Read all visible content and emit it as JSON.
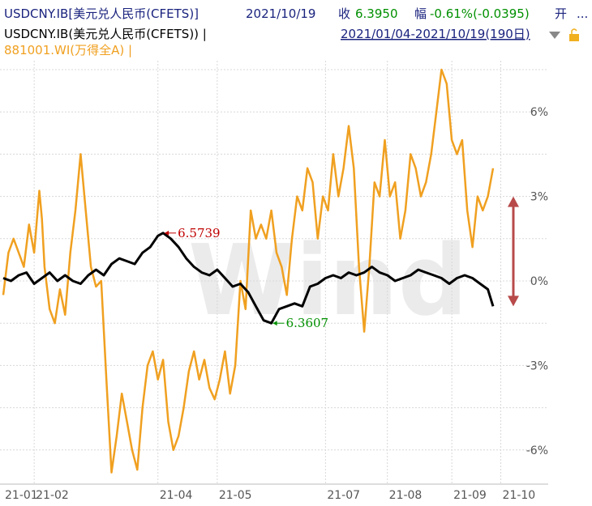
{
  "header": {
    "line1": {
      "security": "USDCNY.IB[美元兑人民币(CFETS)]",
      "date": "2021/10/19",
      "close_label": "收",
      "close_value": "6.3950",
      "change_label": "幅",
      "change_value": "-0.61%(-0.0395)",
      "open_label": "开",
      "more": "..."
    },
    "line2": {
      "series1_legend": "USDCNY.IB(美元兑人民币(CFETS)) |",
      "range": "2021/01/04-2021/10/19(190日)"
    },
    "line3": {
      "series2_legend": "881001.WI(万得全A) |"
    }
  },
  "watermark": "Wind",
  "colors": {
    "usdcny": "#000000",
    "wind_a": "#F0A020",
    "up": "#C00000",
    "down": "#009000",
    "link": "#1A237E",
    "arrow": "#B84A4A",
    "grid": "#D8D8D8"
  },
  "chart_data": {
    "type": "line",
    "x_tick_labels": [
      "21-01",
      "21-02",
      "21-04",
      "21-05",
      "21-07",
      "21-08",
      "21-09",
      "21-10"
    ],
    "y_tick_labels": [
      "6%",
      "3%",
      "0%",
      "-3%",
      "-6%"
    ],
    "ylim": [
      -7.5,
      7.5
    ],
    "y_unit": "%",
    "x_index_range": [
      0,
      190
    ],
    "series": [
      {
        "name": "USDCNY.IB(美元兑人民币(CFETS))",
        "values": [
          [
            0,
            0.1
          ],
          [
            3,
            0.0
          ],
          [
            6,
            0.2
          ],
          [
            9,
            0.3
          ],
          [
            12,
            -0.1
          ],
          [
            15,
            0.1
          ],
          [
            18,
            0.3
          ],
          [
            21,
            0.0
          ],
          [
            24,
            0.2
          ],
          [
            27,
            0.0
          ],
          [
            30,
            -0.1
          ],
          [
            33,
            0.2
          ],
          [
            36,
            0.4
          ],
          [
            39,
            0.2
          ],
          [
            42,
            0.6
          ],
          [
            45,
            0.8
          ],
          [
            48,
            0.7
          ],
          [
            51,
            0.6
          ],
          [
            54,
            1.0
          ],
          [
            57,
            1.2
          ],
          [
            60,
            1.6
          ],
          [
            62,
            1.7
          ],
          [
            65,
            1.5
          ],
          [
            68,
            1.2
          ],
          [
            71,
            0.8
          ],
          [
            74,
            0.5
          ],
          [
            77,
            0.3
          ],
          [
            80,
            0.2
          ],
          [
            83,
            0.4
          ],
          [
            86,
            0.1
          ],
          [
            89,
            -0.2
          ],
          [
            92,
            -0.1
          ],
          [
            95,
            -0.4
          ],
          [
            98,
            -0.9
          ],
          [
            101,
            -1.4
          ],
          [
            104,
            -1.5
          ],
          [
            107,
            -1.0
          ],
          [
            110,
            -0.9
          ],
          [
            113,
            -0.8
          ],
          [
            116,
            -0.9
          ],
          [
            119,
            -0.2
          ],
          [
            122,
            -0.1
          ],
          [
            125,
            0.1
          ],
          [
            128,
            0.2
          ],
          [
            131,
            0.1
          ],
          [
            134,
            0.3
          ],
          [
            137,
            0.2
          ],
          [
            140,
            0.3
          ],
          [
            143,
            0.5
          ],
          [
            146,
            0.3
          ],
          [
            149,
            0.2
          ],
          [
            152,
            0.0
          ],
          [
            155,
            0.1
          ],
          [
            158,
            0.2
          ],
          [
            161,
            0.4
          ],
          [
            164,
            0.3
          ],
          [
            167,
            0.2
          ],
          [
            170,
            0.1
          ],
          [
            173,
            -0.1
          ],
          [
            176,
            0.1
          ],
          [
            179,
            0.2
          ],
          [
            182,
            0.1
          ],
          [
            185,
            -0.1
          ],
          [
            188,
            -0.3
          ],
          [
            190,
            -0.9
          ]
        ]
      },
      {
        "name": "881001.WI(万得全A)",
        "values": [
          [
            0,
            -0.5
          ],
          [
            2,
            1.0
          ],
          [
            4,
            1.5
          ],
          [
            6,
            1.0
          ],
          [
            8,
            0.5
          ],
          [
            10,
            2.0
          ],
          [
            12,
            1.0
          ],
          [
            14,
            3.2
          ],
          [
            15,
            2.2
          ],
          [
            16,
            0.5
          ],
          [
            18,
            -1.0
          ],
          [
            20,
            -1.5
          ],
          [
            22,
            -0.3
          ],
          [
            24,
            -1.2
          ],
          [
            26,
            1.0
          ],
          [
            28,
            2.5
          ],
          [
            30,
            4.5
          ],
          [
            32,
            2.5
          ],
          [
            34,
            0.5
          ],
          [
            36,
            -0.2
          ],
          [
            38,
            0.0
          ],
          [
            40,
            -3.5
          ],
          [
            42,
            -6.8
          ],
          [
            44,
            -5.5
          ],
          [
            46,
            -4.0
          ],
          [
            48,
            -5.0
          ],
          [
            50,
            -6.0
          ],
          [
            52,
            -6.7
          ],
          [
            54,
            -4.5
          ],
          [
            56,
            -3.0
          ],
          [
            58,
            -2.5
          ],
          [
            60,
            -3.5
          ],
          [
            62,
            -2.8
          ],
          [
            64,
            -5.0
          ],
          [
            66,
            -6.0
          ],
          [
            68,
            -5.5
          ],
          [
            70,
            -4.5
          ],
          [
            72,
            -3.2
          ],
          [
            74,
            -2.5
          ],
          [
            76,
            -3.5
          ],
          [
            78,
            -2.8
          ],
          [
            80,
            -3.8
          ],
          [
            82,
            -4.2
          ],
          [
            84,
            -3.5
          ],
          [
            86,
            -2.5
          ],
          [
            88,
            -4.0
          ],
          [
            90,
            -3.0
          ],
          [
            92,
            0.0
          ],
          [
            94,
            -1.0
          ],
          [
            96,
            2.5
          ],
          [
            98,
            1.5
          ],
          [
            100,
            2.0
          ],
          [
            102,
            1.5
          ],
          [
            104,
            2.5
          ],
          [
            106,
            1.0
          ],
          [
            108,
            0.5
          ],
          [
            110,
            -0.5
          ],
          [
            112,
            1.5
          ],
          [
            114,
            3.0
          ],
          [
            116,
            2.5
          ],
          [
            118,
            4.0
          ],
          [
            120,
            3.5
          ],
          [
            122,
            1.5
          ],
          [
            124,
            3.0
          ],
          [
            126,
            2.5
          ],
          [
            128,
            4.5
          ],
          [
            130,
            3.0
          ],
          [
            132,
            4.0
          ],
          [
            134,
            5.5
          ],
          [
            136,
            4.0
          ],
          [
            138,
            0.5
          ],
          [
            140,
            -1.8
          ],
          [
            142,
            0.5
          ],
          [
            144,
            3.5
          ],
          [
            146,
            3.0
          ],
          [
            148,
            5.0
          ],
          [
            150,
            3.0
          ],
          [
            152,
            3.5
          ],
          [
            154,
            1.5
          ],
          [
            156,
            2.5
          ],
          [
            158,
            4.5
          ],
          [
            160,
            4.0
          ],
          [
            162,
            3.0
          ],
          [
            164,
            3.5
          ],
          [
            166,
            4.5
          ],
          [
            168,
            6.0
          ],
          [
            170,
            7.5
          ],
          [
            172,
            7.0
          ],
          [
            174,
            5.0
          ],
          [
            176,
            4.5
          ],
          [
            178,
            5.0
          ],
          [
            180,
            2.5
          ],
          [
            182,
            1.2
          ],
          [
            184,
            3.0
          ],
          [
            186,
            2.5
          ],
          [
            188,
            3.0
          ],
          [
            190,
            4.0
          ]
        ]
      }
    ],
    "annotations": [
      {
        "label": "6.5739",
        "x_index": 62,
        "y": 1.7,
        "color": "up"
      },
      {
        "label": "6.3607",
        "x_index": 104,
        "y": -1.5,
        "color": "down"
      }
    ],
    "arrow": {
      "from": 3.0,
      "to": -0.9
    },
    "grid": true,
    "y_axis_side": "right"
  }
}
